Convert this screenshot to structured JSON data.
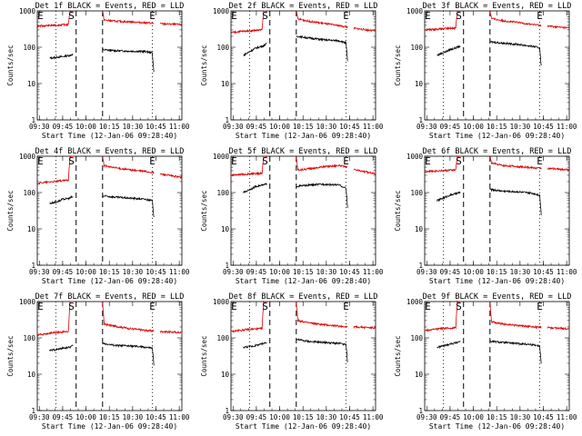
{
  "colors": {
    "events": "#000000",
    "lld": "#dd0000",
    "axes": "#000000"
  },
  "chart_data": [
    {
      "type": "line",
      "title": "Det 1f BLACK = Events, RED = LLD",
      "xlabel": "Start Time (12-Jan-06 09:28:40)",
      "ylabel": "Counts/sec",
      "x_ticks": [
        "09:30",
        "09:45",
        "10:00",
        "10:15",
        "10:30",
        "10:45",
        "11:00"
      ],
      "x_tick_minutes": [
        1.33,
        16.33,
        31.33,
        46.33,
        61.33,
        76.33,
        91.33
      ],
      "xlim": [
        0,
        93
      ],
      "yscale": "log",
      "ylim": [
        1,
        1000
      ],
      "y_ticks": [
        "1",
        "10",
        "100",
        "1000"
      ],
      "markers": [
        "S",
        "E",
        "E"
      ],
      "marker_minutes": [
        22,
        2,
        74
      ],
      "dashed_minutes": [
        25,
        42
      ],
      "dotted_minutes": [
        12,
        74
      ],
      "gaps": [
        [
          23,
          42
        ],
        [
          75,
          79
        ]
      ],
      "series": [
        {
          "name": "Events",
          "color": "events",
          "x": [
            8,
            15,
            16,
            21,
            22,
            42,
            43,
            50,
            60,
            70,
            74,
            75
          ],
          "y": [
            50,
            55,
            55,
            60,
            62,
            85,
            85,
            80,
            78,
            76,
            70,
            20
          ]
        },
        {
          "name": "LLD",
          "color": "lld",
          "x": [
            0,
            5,
            10,
            20,
            21,
            22,
            42,
            43,
            50,
            60,
            70,
            80,
            93
          ],
          "y": [
            380,
            390,
            400,
            420,
            1000,
            1000,
            1000,
            560,
            520,
            500,
            470,
            440,
            420
          ]
        }
      ]
    },
    {
      "type": "line",
      "title": "Det 2f BLACK = Events, RED = LLD",
      "xlabel": "Start Time (12-Jan-06 09:28:40)",
      "ylabel": "Counts/sec",
      "x_ticks": [
        "09:30",
        "09:45",
        "10:00",
        "10:15",
        "10:30",
        "10:45",
        "11:00"
      ],
      "x_tick_minutes": [
        1.33,
        16.33,
        31.33,
        46.33,
        61.33,
        76.33,
        91.33
      ],
      "xlim": [
        0,
        93
      ],
      "yscale": "log",
      "ylim": [
        1,
        1000
      ],
      "y_ticks": [
        "1",
        "10",
        "100",
        "1000"
      ],
      "markers": [
        "S",
        "E",
        "E"
      ],
      "marker_minutes": [
        22,
        2,
        74
      ],
      "dashed_minutes": [
        25,
        42
      ],
      "dotted_minutes": [
        12,
        74
      ],
      "gaps": [
        [
          23,
          42
        ],
        [
          75,
          79
        ]
      ],
      "series": [
        {
          "name": "Events",
          "color": "events",
          "x": [
            8,
            15,
            16,
            21,
            22,
            42,
            43,
            50,
            60,
            70,
            74,
            75
          ],
          "y": [
            60,
            90,
            95,
            110,
            120,
            200,
            200,
            180,
            160,
            150,
            130,
            40
          ]
        },
        {
          "name": "LLD",
          "color": "lld",
          "x": [
            0,
            5,
            10,
            20,
            21,
            22,
            42,
            43,
            50,
            60,
            70,
            80,
            93
          ],
          "y": [
            250,
            270,
            280,
            300,
            1000,
            1000,
            1000,
            600,
            520,
            450,
            390,
            330,
            280
          ]
        }
      ]
    },
    {
      "type": "line",
      "title": "Det 3f BLACK = Events, RED = LLD",
      "xlabel": "Start Time (12-Jan-06 09:28:40)",
      "ylabel": "Counts/sec",
      "x_ticks": [
        "09:30",
        "09:45",
        "10:00",
        "10:15",
        "10:30",
        "10:45",
        "11:00"
      ],
      "x_tick_minutes": [
        1.33,
        16.33,
        31.33,
        46.33,
        61.33,
        76.33,
        91.33
      ],
      "xlim": [
        0,
        93
      ],
      "yscale": "log",
      "ylim": [
        1,
        1000
      ],
      "y_ticks": [
        "1",
        "10",
        "100",
        "1000"
      ],
      "markers": [
        "S",
        "E",
        "E"
      ],
      "marker_minutes": [
        22,
        2,
        74
      ],
      "dashed_minutes": [
        25,
        42
      ],
      "dotted_minutes": [
        12,
        74
      ],
      "gaps": [
        [
          23,
          42
        ],
        [
          75,
          79
        ]
      ],
      "series": [
        {
          "name": "Events",
          "color": "events",
          "x": [
            8,
            15,
            16,
            21,
            22,
            42,
            43,
            50,
            60,
            70,
            74,
            75
          ],
          "y": [
            60,
            80,
            85,
            100,
            105,
            140,
            140,
            130,
            120,
            105,
            95,
            30
          ]
        },
        {
          "name": "LLD",
          "color": "lld",
          "x": [
            0,
            5,
            10,
            20,
            21,
            22,
            42,
            43,
            50,
            60,
            70,
            80,
            93
          ],
          "y": [
            300,
            310,
            320,
            340,
            1000,
            1000,
            1000,
            620,
            540,
            480,
            420,
            380,
            340
          ]
        }
      ]
    },
    {
      "type": "line",
      "title": "Det 4f BLACK = Events, RED = LLD",
      "xlabel": "Start Time (12-Jan-06 09:28:40)",
      "ylabel": "Counts/sec",
      "x_ticks": [
        "09:30",
        "09:45",
        "10:00",
        "10:15",
        "10:30",
        "10:45",
        "11:00"
      ],
      "x_tick_minutes": [
        1.33,
        16.33,
        31.33,
        46.33,
        61.33,
        76.33,
        91.33
      ],
      "xlim": [
        0,
        93
      ],
      "yscale": "log",
      "ylim": [
        1,
        1000
      ],
      "y_ticks": [
        "1",
        "10",
        "100",
        "1000"
      ],
      "markers": [
        "S",
        "E",
        "E"
      ],
      "marker_minutes": [
        22,
        2,
        74
      ],
      "dashed_minutes": [
        25,
        42
      ],
      "dotted_minutes": [
        12,
        74
      ],
      "gaps": [
        [
          23,
          42
        ],
        [
          75,
          79
        ]
      ],
      "series": [
        {
          "name": "Events",
          "color": "events",
          "x": [
            8,
            15,
            16,
            21,
            22,
            42,
            43,
            50,
            60,
            70,
            74,
            75
          ],
          "y": [
            50,
            60,
            65,
            70,
            75,
            80,
            80,
            75,
            70,
            65,
            60,
            20
          ]
        },
        {
          "name": "LLD",
          "color": "lld",
          "x": [
            0,
            5,
            10,
            20,
            21,
            22,
            42,
            43,
            50,
            60,
            70,
            80,
            93
          ],
          "y": [
            180,
            190,
            200,
            220,
            1000,
            1000,
            1000,
            550,
            480,
            420,
            380,
            320,
            260
          ]
        }
      ]
    },
    {
      "type": "line",
      "title": "Det 5f BLACK = Events, RED = LLD",
      "xlabel": "Start Time (12-Jan-06 09:28:40)",
      "ylabel": "Counts/sec",
      "x_ticks": [
        "09:30",
        "09:45",
        "10:00",
        "10:15",
        "10:30",
        "10:45",
        "11:00"
      ],
      "x_tick_minutes": [
        1.33,
        16.33,
        31.33,
        46.33,
        61.33,
        76.33,
        91.33
      ],
      "xlim": [
        0,
        93
      ],
      "yscale": "log",
      "ylim": [
        1,
        1000
      ],
      "y_ticks": [
        "1",
        "10",
        "100",
        "1000"
      ],
      "markers": [
        "S",
        "E",
        "E"
      ],
      "marker_minutes": [
        22,
        2,
        74
      ],
      "dashed_minutes": [
        25,
        42
      ],
      "dotted_minutes": [
        12,
        74
      ],
      "gaps": [
        [
          23,
          42
        ],
        [
          75,
          79
        ]
      ],
      "series": [
        {
          "name": "Events",
          "color": "events",
          "x": [
            8,
            15,
            16,
            21,
            22,
            42,
            43,
            50,
            60,
            70,
            74,
            75
          ],
          "y": [
            100,
            140,
            150,
            160,
            170,
            150,
            150,
            160,
            170,
            160,
            130,
            40
          ]
        },
        {
          "name": "LLD",
          "color": "lld",
          "x": [
            0,
            5,
            10,
            20,
            21,
            22,
            42,
            43,
            50,
            60,
            70,
            80,
            93
          ],
          "y": [
            300,
            310,
            320,
            340,
            1000,
            1000,
            1000,
            420,
            450,
            520,
            560,
            420,
            330
          ]
        }
      ]
    },
    {
      "type": "line",
      "title": "Det 6f BLACK = Events, RED = LLD",
      "xlabel": "Start Time (12-Jan-06 09:28:40)",
      "ylabel": "Counts/sec",
      "x_ticks": [
        "09:30",
        "09:45",
        "10:00",
        "10:15",
        "10:30",
        "10:45",
        "11:00"
      ],
      "x_tick_minutes": [
        1.33,
        16.33,
        31.33,
        46.33,
        61.33,
        76.33,
        91.33
      ],
      "xlim": [
        0,
        93
      ],
      "yscale": "log",
      "ylim": [
        1,
        1000
      ],
      "y_ticks": [
        "1",
        "10",
        "100",
        "1000"
      ],
      "markers": [
        "S",
        "E",
        "E"
      ],
      "marker_minutes": [
        22,
        2,
        74
      ],
      "dashed_minutes": [
        25,
        42
      ],
      "dotted_minutes": [
        12,
        74
      ],
      "gaps": [
        [
          23,
          42
        ],
        [
          75,
          79
        ]
      ],
      "series": [
        {
          "name": "Events",
          "color": "events",
          "x": [
            8,
            15,
            16,
            21,
            22,
            42,
            43,
            50,
            60,
            70,
            74,
            75
          ],
          "y": [
            60,
            80,
            85,
            95,
            100,
            120,
            120,
            110,
            105,
            95,
            85,
            25
          ]
        },
        {
          "name": "LLD",
          "color": "lld",
          "x": [
            0,
            5,
            10,
            20,
            21,
            22,
            42,
            43,
            50,
            60,
            70,
            80,
            93
          ],
          "y": [
            380,
            390,
            400,
            420,
            1000,
            1000,
            1000,
            650,
            560,
            520,
            480,
            460,
            420
          ]
        }
      ]
    },
    {
      "type": "line",
      "title": "Det 7f BLACK = Events, RED = LLD",
      "xlabel": "Start Time (12-Jan-06 09:28:40)",
      "ylabel": "Counts/sec",
      "x_ticks": [
        "09:30",
        "09:45",
        "10:00",
        "10:15",
        "10:30",
        "10:45",
        "11:00"
      ],
      "x_tick_minutes": [
        1.33,
        16.33,
        31.33,
        46.33,
        61.33,
        76.33,
        91.33
      ],
      "xlim": [
        0,
        93
      ],
      "yscale": "log",
      "ylim": [
        1,
        1000
      ],
      "y_ticks": [
        "1",
        "10",
        "100",
        "1000"
      ],
      "markers": [
        "S",
        "E",
        "E"
      ],
      "marker_minutes": [
        22,
        2,
        74
      ],
      "dashed_minutes": [
        25,
        42
      ],
      "dotted_minutes": [
        12,
        74
      ],
      "gaps": [
        [
          23,
          42
        ],
        [
          75,
          79
        ]
      ],
      "series": [
        {
          "name": "Events",
          "color": "events",
          "x": [
            8,
            15,
            16,
            21,
            22,
            42,
            43,
            50,
            60,
            70,
            74,
            75
          ],
          "y": [
            45,
            50,
            52,
            55,
            60,
            70,
            70,
            62,
            60,
            55,
            52,
            18
          ]
        },
        {
          "name": "LLD",
          "color": "lld",
          "x": [
            0,
            5,
            10,
            20,
            21,
            22,
            42,
            43,
            50,
            60,
            70,
            80,
            93
          ],
          "y": [
            120,
            130,
            140,
            150,
            1000,
            1000,
            1000,
            240,
            210,
            180,
            160,
            150,
            140
          ]
        }
      ]
    },
    {
      "type": "line",
      "title": "Det 8f BLACK = Events, RED = LLD",
      "xlabel": "Start Time (12-Jan-06 09:28:40)",
      "ylabel": "Counts/sec",
      "x_ticks": [
        "09:30",
        "09:45",
        "10:00",
        "10:15",
        "10:30",
        "10:45",
        "11:00"
      ],
      "x_tick_minutes": [
        1.33,
        16.33,
        31.33,
        46.33,
        61.33,
        76.33,
        91.33
      ],
      "xlim": [
        0,
        93
      ],
      "yscale": "log",
      "ylim": [
        1,
        1000
      ],
      "y_ticks": [
        "1",
        "10",
        "100",
        "1000"
      ],
      "markers": [
        "S",
        "E",
        "E"
      ],
      "marker_minutes": [
        22,
        2,
        74
      ],
      "dashed_minutes": [
        25,
        42
      ],
      "dotted_minutes": [
        12,
        74
      ],
      "gaps": [
        [
          23,
          42
        ],
        [
          75,
          79
        ]
      ],
      "series": [
        {
          "name": "Events",
          "color": "events",
          "x": [
            8,
            15,
            16,
            21,
            22,
            42,
            43,
            50,
            60,
            70,
            74,
            75
          ],
          "y": [
            55,
            60,
            62,
            70,
            75,
            90,
            90,
            80,
            75,
            70,
            65,
            22
          ]
        },
        {
          "name": "LLD",
          "color": "lld",
          "x": [
            0,
            5,
            10,
            20,
            21,
            22,
            42,
            43,
            50,
            60,
            70,
            80,
            93
          ],
          "y": [
            150,
            160,
            170,
            180,
            1000,
            1000,
            1000,
            300,
            260,
            230,
            210,
            200,
            190
          ]
        }
      ]
    },
    {
      "type": "line",
      "title": "Det 9f BLACK = Events, RED = LLD",
      "xlabel": "Start Time (12-Jan-06 09:28:40)",
      "ylabel": "Counts/sec",
      "x_ticks": [
        "09:30",
        "09:45",
        "10:00",
        "10:15",
        "10:30",
        "10:45",
        "11:00"
      ],
      "x_tick_minutes": [
        1.33,
        16.33,
        31.33,
        46.33,
        61.33,
        76.33,
        91.33
      ],
      "xlim": [
        0,
        93
      ],
      "yscale": "log",
      "ylim": [
        1,
        1000
      ],
      "y_ticks": [
        "1",
        "10",
        "100",
        "1000"
      ],
      "markers": [
        "S",
        "E",
        "E"
      ],
      "marker_minutes": [
        22,
        2,
        74
      ],
      "dashed_minutes": [
        25,
        42
      ],
      "dotted_minutes": [
        12,
        74
      ],
      "gaps": [
        [
          23,
          42
        ],
        [
          75,
          79
        ]
      ],
      "series": [
        {
          "name": "Events",
          "color": "events",
          "x": [
            8,
            15,
            16,
            21,
            22,
            42,
            43,
            50,
            60,
            70,
            74,
            75
          ],
          "y": [
            55,
            65,
            68,
            75,
            80,
            80,
            80,
            75,
            70,
            65,
            60,
            20
          ]
        },
        {
          "name": "LLD",
          "color": "lld",
          "x": [
            0,
            5,
            10,
            20,
            21,
            22,
            42,
            43,
            50,
            60,
            70,
            80,
            93
          ],
          "y": [
            160,
            170,
            180,
            190,
            1000,
            1000,
            1000,
            280,
            240,
            220,
            200,
            190,
            180
          ]
        }
      ]
    }
  ]
}
